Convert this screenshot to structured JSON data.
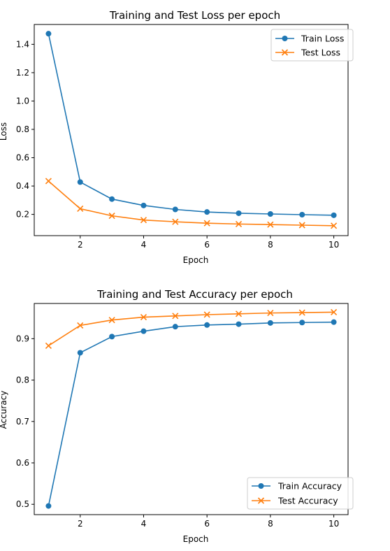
{
  "chart_data": [
    {
      "type": "line",
      "title": "Training and Test Loss per epoch",
      "xlabel": "Epoch",
      "ylabel": "Loss",
      "x": [
        1,
        2,
        3,
        4,
        5,
        6,
        7,
        8,
        9,
        10
      ],
      "xlim": [
        0.55,
        10.45
      ],
      "ylim": [
        0.05,
        1.54
      ],
      "xticks": [
        2,
        4,
        6,
        8,
        10
      ],
      "yticks": [
        0.2,
        0.4,
        0.6,
        0.8,
        1.0,
        1.2,
        1.4
      ],
      "ytick_labels": [
        "0.2",
        "0.4",
        "0.6",
        "0.8",
        "1.0",
        "1.2",
        "1.4"
      ],
      "legend_position": "top-right",
      "grid": false,
      "series": [
        {
          "name": "Train Loss",
          "marker": "circle",
          "color": "#1f77b4",
          "values": [
            1.475,
            0.428,
            0.308,
            0.263,
            0.235,
            0.217,
            0.208,
            0.203,
            0.198,
            0.194
          ]
        },
        {
          "name": "Test Loss",
          "marker": "x",
          "color": "#ff7f0e",
          "values": [
            0.435,
            0.24,
            0.19,
            0.16,
            0.148,
            0.138,
            0.132,
            0.128,
            0.124,
            0.12
          ]
        }
      ]
    },
    {
      "type": "line",
      "title": "Training and Test Accuracy per epoch",
      "xlabel": "Epoch",
      "ylabel": "Accuracy",
      "x": [
        1,
        2,
        3,
        4,
        5,
        6,
        7,
        8,
        9,
        10
      ],
      "xlim": [
        0.55,
        10.45
      ],
      "ylim": [
        0.475,
        0.985
      ],
      "xticks": [
        2,
        4,
        6,
        8,
        10
      ],
      "yticks": [
        0.5,
        0.6,
        0.7,
        0.8,
        0.9
      ],
      "ytick_labels": [
        "0.5",
        "0.6",
        "0.7",
        "0.8",
        "0.9"
      ],
      "legend_position": "bottom-right",
      "grid": false,
      "series": [
        {
          "name": "Train Accuracy",
          "marker": "circle",
          "color": "#1f77b4",
          "values": [
            0.496,
            0.866,
            0.905,
            0.918,
            0.929,
            0.933,
            0.935,
            0.938,
            0.939,
            0.94
          ]
        },
        {
          "name": "Test Accuracy",
          "marker": "x",
          "color": "#ff7f0e",
          "values": [
            0.883,
            0.932,
            0.945,
            0.952,
            0.955,
            0.958,
            0.96,
            0.962,
            0.963,
            0.964
          ]
        }
      ]
    }
  ]
}
